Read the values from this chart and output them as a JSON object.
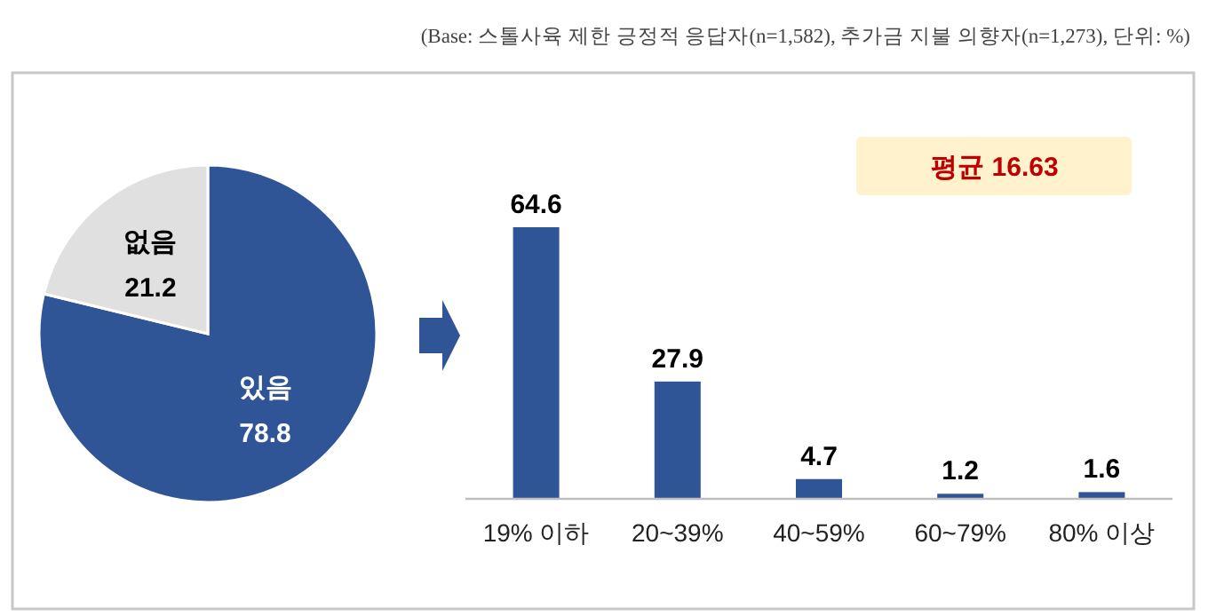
{
  "chart_data": [
    {
      "type": "pie",
      "categories": [
        "있음",
        "없음"
      ],
      "values": [
        78.8,
        21.2
      ],
      "colors": [
        "#2f5597",
        "#e0e0e0"
      ],
      "data_labels": true,
      "annotations": [
        "(Base: 스톨사육 제한 긍정적 응답자(n=1,582), 추가금 지불 의향자(n=1,273), 단위: %)"
      ]
    },
    {
      "type": "bar",
      "categories": [
        "19% 이하",
        "20~39%",
        "40~59%",
        "60~79%",
        "80% 이상"
      ],
      "values": [
        64.6,
        27.9,
        4.7,
        1.2,
        1.6
      ],
      "color": "#2f5597",
      "data_labels": true,
      "annotations": [
        "평균 16.63"
      ]
    }
  ]
}
